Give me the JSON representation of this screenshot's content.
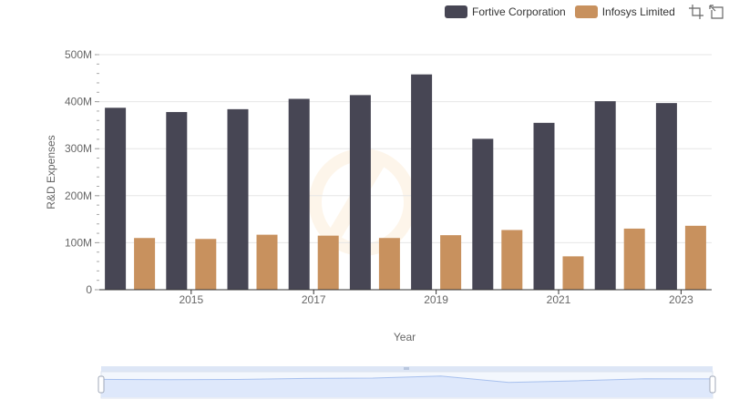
{
  "colors": {
    "fortive": "#474654",
    "infosys": "#c8915e",
    "grid": "#e6e6e6",
    "axis": "#333333",
    "slider_fill": "#dbe6fb",
    "slider_line": "#a7c0ee"
  },
  "legend": {
    "items": [
      {
        "name": "Fortive Corporation",
        "color": "#474654"
      },
      {
        "name": "Infosys Limited",
        "color": "#c8915e"
      }
    ],
    "tools": [
      "zoom-select-icon",
      "zoom-reset-icon"
    ]
  },
  "chart_data": {
    "type": "bar",
    "xlabel": "Year",
    "ylabel": "R&D Expenses",
    "ylim": [
      0,
      500000000
    ],
    "y_ticks": [
      {
        "value": 0,
        "label": "0"
      },
      {
        "value": 100000000,
        "label": "100M"
      },
      {
        "value": 200000000,
        "label": "200M"
      },
      {
        "value": 300000000,
        "label": "300M"
      },
      {
        "value": 400000000,
        "label": "400M"
      },
      {
        "value": 500000000,
        "label": "500M"
      }
    ],
    "x_ticks": [
      {
        "year": 2015,
        "label": "2015"
      },
      {
        "year": 2017,
        "label": "2017"
      },
      {
        "year": 2019,
        "label": "2019"
      },
      {
        "year": 2021,
        "label": "2021"
      },
      {
        "year": 2023,
        "label": "2023"
      }
    ],
    "categories": [
      2014,
      2015,
      2016,
      2017,
      2018,
      2019,
      2020,
      2021,
      2022,
      2023
    ],
    "series": [
      {
        "name": "Fortive Corporation",
        "color": "#474654",
        "values": [
          387000000,
          378000000,
          384000000,
          406000000,
          414000000,
          458000000,
          321000000,
          355000000,
          401000000,
          397000000
        ]
      },
      {
        "name": "Infosys Limited",
        "color": "#c8915e",
        "values": [
          110000000,
          108000000,
          117000000,
          115000000,
          110000000,
          116000000,
          127000000,
          71000000,
          130000000,
          136000000
        ]
      }
    ],
    "grid": true,
    "legend_position": "top-right",
    "zoom_slider": true
  }
}
